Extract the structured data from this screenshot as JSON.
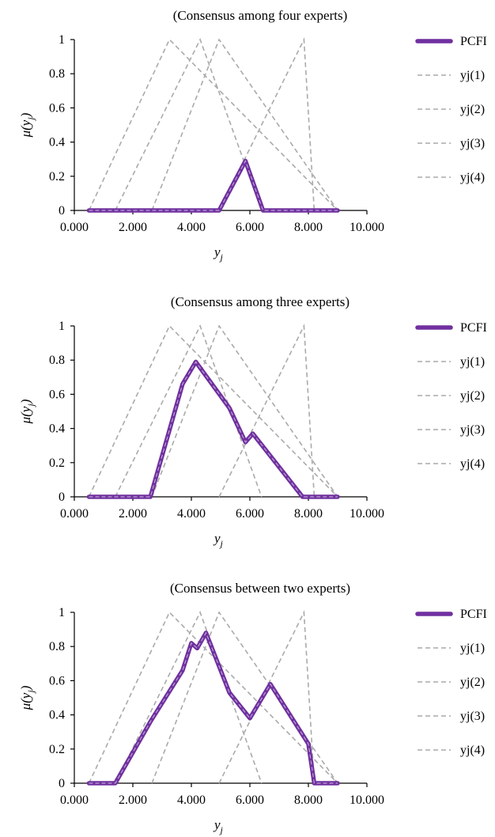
{
  "chart_data": [
    {
      "type": "line",
      "title": "(Consensus among four experts)",
      "xlabel_main": "y",
      "xlabel_sub": "j",
      "ylabel_main": "μ(y",
      "ylabel_sub": "j",
      "ylabel_close": ")",
      "xlim": [
        0,
        10
      ],
      "ylim": [
        0,
        1
      ],
      "xticks": [
        0,
        2,
        4,
        6,
        8,
        10
      ],
      "xtick_labels": [
        "0.000",
        "2.000",
        "4.000",
        "6.000",
        "8.000",
        "10.000"
      ],
      "yticks": [
        0,
        0.2,
        0.4,
        0.6,
        0.8,
        1
      ],
      "ytick_labels": [
        "0",
        "0.2",
        "0.4",
        "0.6",
        "0.8",
        "1"
      ],
      "legend_position": "right",
      "series": [
        {
          "name": "PCFI",
          "style": "solid",
          "color": "#7030a0",
          "points": [
            [
              0.5,
              0
            ],
            [
              4.95,
              0
            ],
            [
              5.85,
              0.29
            ],
            [
              6.45,
              0
            ],
            [
              9.0,
              0
            ]
          ]
        },
        {
          "name": "yj(1)",
          "style": "dashed",
          "color": "#aaaaaa",
          "points": [
            [
              0.5,
              0
            ],
            [
              3.25,
              1
            ],
            [
              9.0,
              0
            ]
          ]
        },
        {
          "name": "yj(2)",
          "style": "dashed",
          "color": "#aaaaaa",
          "points": [
            [
              1.4,
              0
            ],
            [
              4.3,
              1
            ],
            [
              6.4,
              0
            ]
          ]
        },
        {
          "name": "yj(3)",
          "style": "dashed",
          "color": "#aaaaaa",
          "points": [
            [
              2.65,
              0
            ],
            [
              4.95,
              1
            ],
            [
              9.0,
              0
            ]
          ]
        },
        {
          "name": "yj(4)",
          "style": "dashed",
          "color": "#aaaaaa",
          "points": [
            [
              4.95,
              0
            ],
            [
              7.85,
              1
            ],
            [
              8.2,
              0
            ]
          ]
        }
      ]
    },
    {
      "type": "line",
      "title": "(Consensus among three experts)",
      "xlabel_main": "y",
      "xlabel_sub": "j",
      "ylabel_main": "μ(y",
      "ylabel_sub": "j",
      "ylabel_close": ")",
      "xlim": [
        0,
        10
      ],
      "ylim": [
        0,
        1
      ],
      "xticks": [
        0,
        2,
        4,
        6,
        8,
        10
      ],
      "xtick_labels": [
        "0.000",
        "2.000",
        "4.000",
        "6.000",
        "8.000",
        "10.000"
      ],
      "yticks": [
        0,
        0.2,
        0.4,
        0.6,
        0.8,
        1
      ],
      "ytick_labels": [
        "0",
        "0.2",
        "0.4",
        "0.6",
        "0.8",
        "1"
      ],
      "legend_position": "right",
      "series": [
        {
          "name": "PCFI",
          "style": "solid",
          "color": "#7030a0",
          "points": [
            [
              0.5,
              0
            ],
            [
              2.6,
              0
            ],
            [
              3.7,
              0.66
            ],
            [
              4.15,
              0.79
            ],
            [
              5.3,
              0.52
            ],
            [
              5.85,
              0.32
            ],
            [
              6.1,
              0.37
            ],
            [
              7.8,
              0
            ],
            [
              9.0,
              0
            ]
          ]
        },
        {
          "name": "yj(1)",
          "style": "dashed",
          "color": "#aaaaaa",
          "points": [
            [
              0.5,
              0
            ],
            [
              3.25,
              1
            ],
            [
              9.0,
              0
            ]
          ]
        },
        {
          "name": "yj(2)",
          "style": "dashed",
          "color": "#aaaaaa",
          "points": [
            [
              1.4,
              0
            ],
            [
              4.3,
              1
            ],
            [
              6.4,
              0
            ]
          ]
        },
        {
          "name": "yj(3)",
          "style": "dashed",
          "color": "#aaaaaa",
          "points": [
            [
              2.65,
              0
            ],
            [
              4.95,
              1
            ],
            [
              9.0,
              0
            ]
          ]
        },
        {
          "name": "yj(4)",
          "style": "dashed",
          "color": "#aaaaaa",
          "points": [
            [
              4.95,
              0
            ],
            [
              7.85,
              1
            ],
            [
              8.2,
              0
            ]
          ]
        }
      ]
    },
    {
      "type": "line",
      "title": "(Consensus between two experts)",
      "xlabel_main": "y",
      "xlabel_sub": "j",
      "ylabel_main": "μ(y",
      "ylabel_sub": "j",
      "ylabel_close": ")",
      "xlim": [
        0,
        10
      ],
      "ylim": [
        0,
        1
      ],
      "xticks": [
        0,
        2,
        4,
        6,
        8,
        10
      ],
      "xtick_labels": [
        "0.000",
        "2.000",
        "4.000",
        "6.000",
        "8.000",
        "10.000"
      ],
      "yticks": [
        0,
        0.2,
        0.4,
        0.6,
        0.8,
        1
      ],
      "ytick_labels": [
        "0",
        "0.2",
        "0.4",
        "0.6",
        "0.8",
        "1"
      ],
      "legend_position": "right",
      "series": [
        {
          "name": "PCFI",
          "style": "solid",
          "color": "#7030a0",
          "points": [
            [
              0.5,
              0
            ],
            [
              1.4,
              0
            ],
            [
              2.6,
              0.36
            ],
            [
              3.7,
              0.66
            ],
            [
              4.0,
              0.82
            ],
            [
              4.2,
              0.79
            ],
            [
              4.5,
              0.88
            ],
            [
              5.3,
              0.53
            ],
            [
              6.0,
              0.38
            ],
            [
              6.7,
              0.58
            ],
            [
              8.0,
              0.23
            ],
            [
              8.2,
              0
            ],
            [
              9.0,
              0
            ]
          ]
        },
        {
          "name": "yj(1)",
          "style": "dashed",
          "color": "#aaaaaa",
          "points": [
            [
              0.5,
              0
            ],
            [
              3.25,
              1
            ],
            [
              9.0,
              0
            ]
          ]
        },
        {
          "name": "yj(2)",
          "style": "dashed",
          "color": "#aaaaaa",
          "points": [
            [
              1.4,
              0
            ],
            [
              4.3,
              1
            ],
            [
              6.4,
              0
            ]
          ]
        },
        {
          "name": "yj(3)",
          "style": "dashed",
          "color": "#aaaaaa",
          "points": [
            [
              2.65,
              0
            ],
            [
              4.95,
              1
            ],
            [
              9.0,
              0
            ]
          ]
        },
        {
          "name": "yj(4)",
          "style": "dashed",
          "color": "#aaaaaa",
          "points": [
            [
              4.95,
              0
            ],
            [
              7.85,
              1
            ],
            [
              8.2,
              0
            ]
          ]
        }
      ]
    }
  ]
}
